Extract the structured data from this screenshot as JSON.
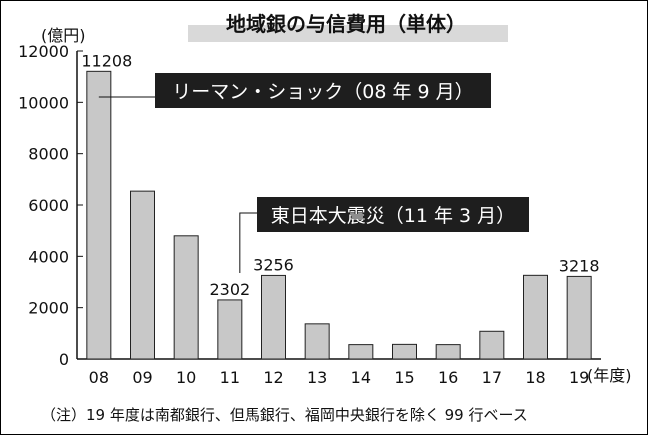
{
  "chart_data": {
    "type": "bar",
    "title": "地域銀の与信費用（単体）",
    "unit": "(億円)",
    "x_unit": "(年度)",
    "categories": [
      "08",
      "09",
      "10",
      "11",
      "12",
      "13",
      "14",
      "15",
      "16",
      "17",
      "18",
      "19"
    ],
    "values": [
      11208,
      6540,
      4800,
      2302,
      3256,
      1370,
      560,
      570,
      560,
      1080,
      3260,
      3218
    ],
    "data_labels": [
      {
        "index": 0,
        "text": "11208"
      },
      {
        "index": 3,
        "text": "2302"
      },
      {
        "index": 4,
        "text": "3256"
      },
      {
        "index": 11,
        "text": "3218"
      }
    ],
    "ylim": [
      0,
      12000
    ],
    "yticks": [
      0,
      2000,
      4000,
      6000,
      8000,
      10000,
      12000
    ],
    "grid": false,
    "annotations": [
      {
        "text": "リーマン・ショック（08 年 9 月）",
        "index": 0
      },
      {
        "text": "東日本大震災（11 年 3 月）",
        "index": 3
      }
    ],
    "note": "（注）19 年度は南都銀行、但馬銀行、福岡中央銀行を除く 99 行ベース",
    "colors": {
      "bar": "#c8c8c8",
      "bar_stroke": "#222222",
      "callout_bg": "#1e1e1e",
      "callout_text": "#ffffff",
      "title_band": "#d9d9d9"
    }
  }
}
